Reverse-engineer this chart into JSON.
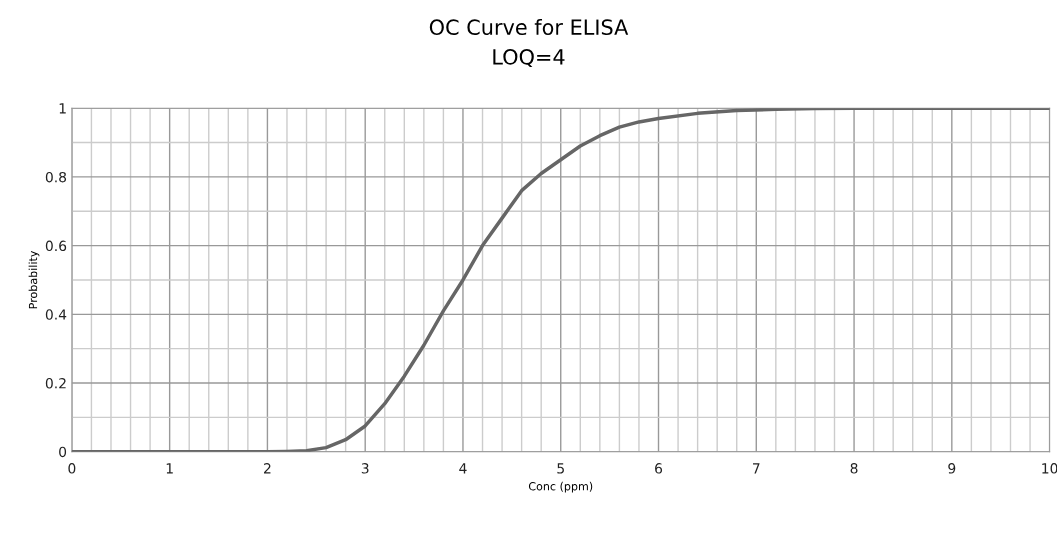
{
  "chart_data": {
    "type": "line",
    "title": "OC Curve for ELISA\nLOQ=4",
    "xlabel": "Conc (ppm)",
    "ylabel": "Probability",
    "x": [
      0,
      1,
      2,
      2.2,
      2.4,
      2.6,
      2.8,
      3.0,
      3.2,
      3.4,
      3.6,
      3.8,
      4.0,
      4.2,
      4.4,
      4.6,
      4.8,
      5.0,
      5.2,
      5.4,
      5.6,
      5.8,
      6.0,
      6.4,
      6.8,
      7.2,
      7.6,
      8,
      9,
      10
    ],
    "series": [
      {
        "color": "#666666",
        "values": [
          0,
          0,
          0,
          0.001,
          0.003,
          0.012,
          0.035,
          0.075,
          0.14,
          0.22,
          0.31,
          0.41,
          0.5,
          0.6,
          0.68,
          0.76,
          0.81,
          0.85,
          0.89,
          0.92,
          0.945,
          0.96,
          0.97,
          0.985,
          0.993,
          0.997,
          0.999,
          1,
          1,
          1
        ]
      }
    ],
    "xlim": [
      0,
      10
    ],
    "ylim": [
      0,
      1
    ],
    "xticks": [
      0,
      {
        "value": 0.2,
        "label": null
      },
      {
        "value": 0.4,
        "label": null
      },
      {
        "value": 0.6,
        "label": null
      },
      {
        "value": 0.8,
        "label": null
      },
      1,
      {
        "value": 1.2,
        "label": null
      },
      {
        "value": 1.4,
        "label": null
      },
      {
        "value": 1.6,
        "label": null
      },
      {
        "value": 1.8,
        "label": null
      },
      2,
      {
        "value": 2.2,
        "label": null
      },
      {
        "value": 2.4,
        "label": null
      },
      {
        "value": 2.6,
        "label": null
      },
      {
        "value": 2.8,
        "label": null
      },
      3,
      {
        "value": 3.2,
        "label": null
      },
      {
        "value": 3.4,
        "label": null
      },
      {
        "value": 3.6,
        "label": null
      },
      {
        "value": 3.8,
        "label": null
      },
      4,
      {
        "value": 4.2,
        "label": null
      },
      {
        "value": 4.4,
        "label": null
      },
      {
        "value": 4.6,
        "label": null
      },
      {
        "value": 4.8,
        "label": null
      },
      5,
      {
        "value": 5.2,
        "label": null
      },
      {
        "value": 5.4,
        "label": null
      },
      {
        "value": 5.6,
        "label": null
      },
      {
        "value": 5.8,
        "label": null
      },
      6,
      {
        "value": 6.2,
        "label": null
      },
      {
        "value": 6.4,
        "label": null
      },
      {
        "value": 6.6,
        "label": null
      },
      {
        "value": 6.8,
        "label": null
      },
      7,
      {
        "value": 7.2,
        "label": null
      },
      {
        "value": 7.4,
        "label": null
      },
      {
        "value": 7.6,
        "label": null
      },
      {
        "value": 7.8,
        "label": null
      },
      8,
      {
        "value": 8.2,
        "label": null
      },
      {
        "value": 8.4,
        "label": null
      },
      {
        "value": 8.6,
        "label": null
      },
      {
        "value": 8.8,
        "label": null
      },
      9,
      {
        "value": 9.2,
        "label": null
      },
      {
        "value": 9.4,
        "label": null
      },
      {
        "value": 9.6,
        "label": null
      },
      {
        "value": 9.8,
        "label": null
      },
      10
    ],
    "yticks": [
      0,
      {
        "value": 0.1,
        "label": null
      },
      0.2,
      {
        "value": 0.3,
        "label": null
      },
      0.4,
      {
        "value": 0.5,
        "label": null
      },
      0.6,
      {
        "value": 0.7,
        "label": null
      },
      0.8,
      {
        "value": 0.9,
        "label": null
      },
      1
    ],
    "grid": true,
    "marker": "none",
    "line_style": "solid"
  }
}
